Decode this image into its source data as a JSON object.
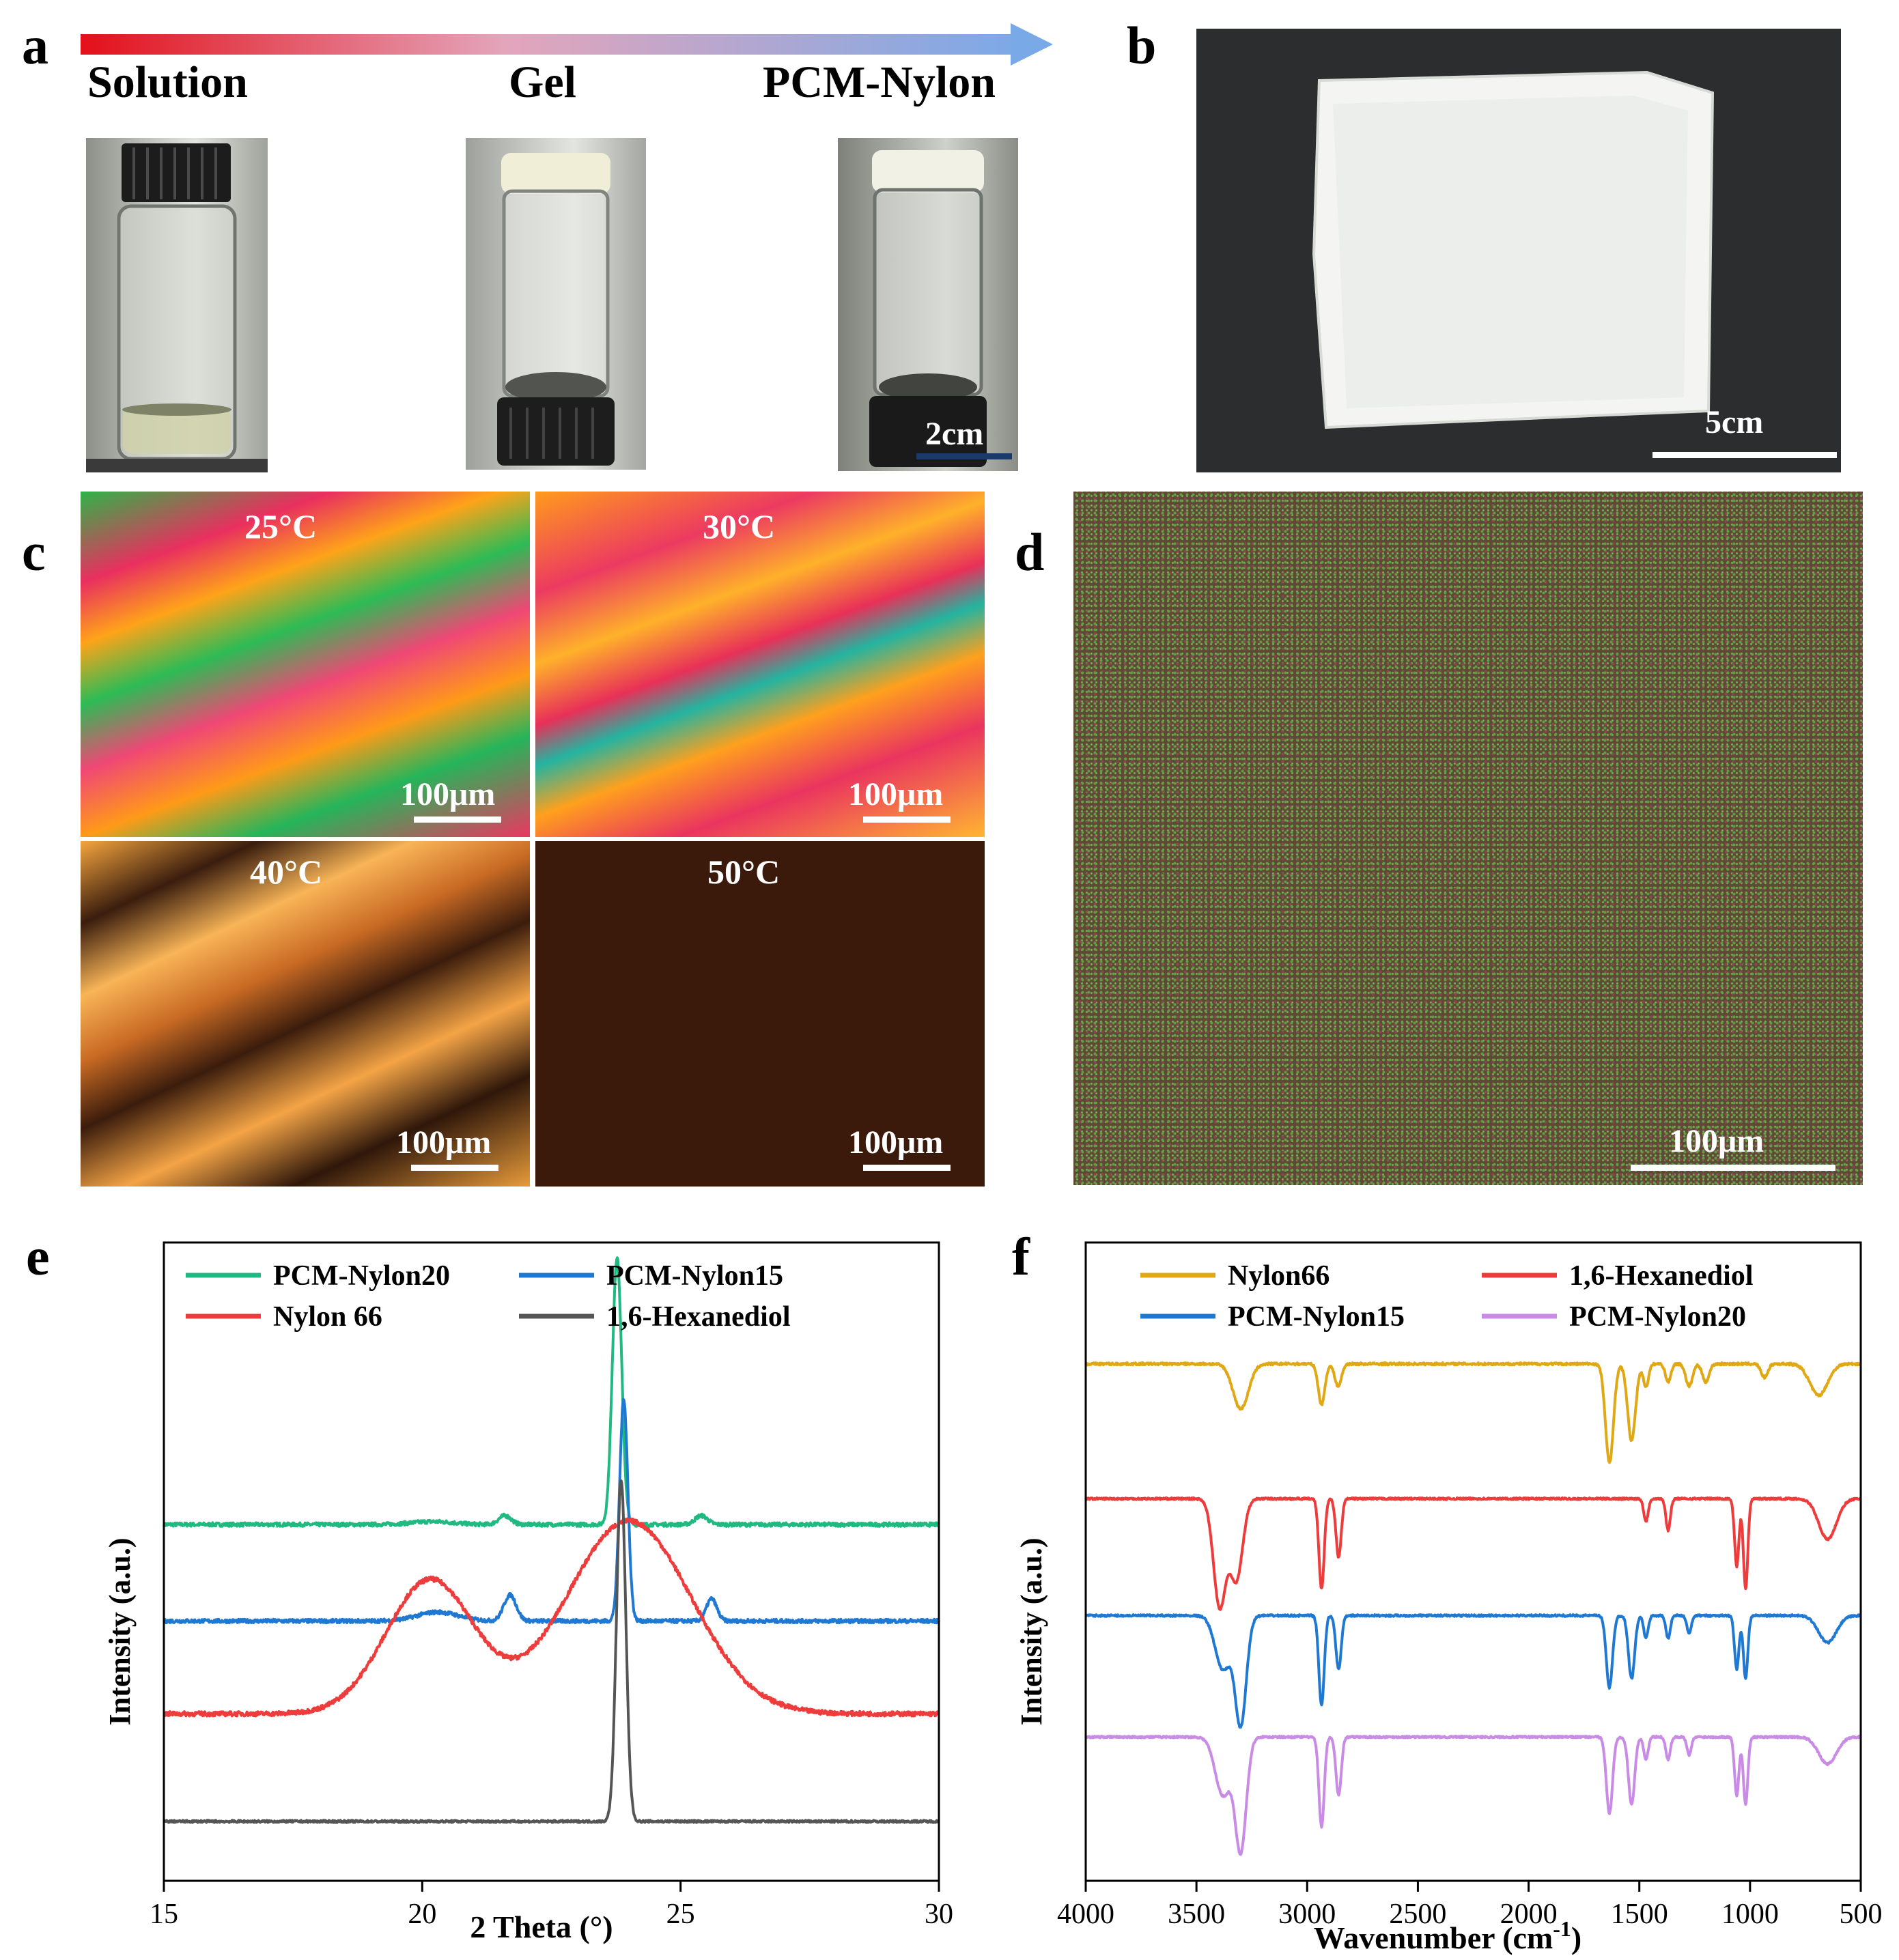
{
  "panels": {
    "a": {
      "label": "a",
      "steps": [
        "Solution",
        "Gel",
        "PCM-Nylon"
      ],
      "scale_bar": "2cm",
      "colors": {
        "arrow_start": "#e3101a",
        "arrow_end": "#7aa9e8"
      }
    },
    "b": {
      "label": "b",
      "scale_bar": "5cm"
    },
    "c": {
      "label": "c",
      "images": [
        {
          "temp": "25°C",
          "scale_bar": "100μm"
        },
        {
          "temp": "30°C",
          "scale_bar": "100μm"
        },
        {
          "temp": "40°C",
          "scale_bar": "100μm"
        },
        {
          "temp": "50°C",
          "scale_bar": "100μm"
        }
      ]
    },
    "d": {
      "label": "d",
      "scale_bar": "100μm"
    },
    "e": {
      "label": "e"
    },
    "f": {
      "label": "f"
    }
  },
  "chart_data": [
    {
      "type": "line",
      "panel": "e",
      "xlabel": "2 Theta (°)",
      "ylabel": "Intensity (a.u.)",
      "xlim": [
        15,
        30
      ],
      "xticks": [
        15,
        20,
        25,
        30
      ],
      "yticks_shown": false,
      "legend": {
        "placement": "top",
        "columns": 2
      },
      "series": [
        {
          "name": "PCM-Nylon20",
          "color": "#1fb981",
          "baseline": 4.0,
          "sigma": 0.05,
          "peaks": [
            [
              23.77,
              3.6,
              0.09
            ],
            [
              21.6,
              0.12,
              0.12
            ],
            [
              25.4,
              0.12,
              0.12
            ],
            [
              20.2,
              0.04,
              0.4
            ]
          ]
        },
        {
          "name": "PCM-Nylon15",
          "color": "#1f78d2",
          "baseline": 2.7,
          "sigma": 0.05,
          "peaks": [
            [
              23.9,
              3.0,
              0.08
            ],
            [
              21.7,
              0.35,
              0.12
            ],
            [
              25.6,
              0.3,
              0.1
            ],
            [
              20.3,
              0.12,
              0.4
            ]
          ]
        },
        {
          "name": "Nylon 66",
          "color": "#ee3b3b",
          "baseline": 1.45,
          "sigma": 0.06,
          "peaks": [
            [
              20.15,
              1.8,
              0.85
            ],
            [
              24.0,
              2.6,
              1.2
            ]
          ]
        },
        {
          "name": "1,6-Hexanediol",
          "color": "#555555",
          "baseline": 0.0,
          "sigma": 0.03,
          "peaks": [
            [
              23.85,
              4.6,
              0.09
            ]
          ]
        }
      ]
    },
    {
      "type": "line",
      "panel": "f",
      "xlabel": "Wavenumber (cm",
      "xlabel_sup": "-1",
      "xlabel_close": ")",
      "ylabel": "Intensity (a.u.)",
      "xlim": [
        4000,
        500
      ],
      "xticks": [
        4000,
        3500,
        3000,
        2500,
        2000,
        1500,
        1000,
        500
      ],
      "yticks_shown": false,
      "legend": {
        "placement": "top",
        "columns": 2
      },
      "series": [
        {
          "name": "Nylon66",
          "color": "#e0a814",
          "offset": 10.3,
          "sigma": 0.05,
          "bands": [
            [
              3300,
              1.0,
              35
            ],
            [
              2935,
              0.9,
              15
            ],
            [
              2860,
              0.5,
              15
            ],
            [
              1635,
              2.2,
              18
            ],
            [
              1535,
              1.7,
              18
            ],
            [
              1470,
              0.5,
              12
            ],
            [
              1370,
              0.4,
              12
            ],
            [
              1275,
              0.5,
              15
            ],
            [
              1200,
              0.4,
              15
            ],
            [
              935,
              0.3,
              15
            ],
            [
              690,
              0.7,
              40
            ]
          ]
        },
        {
          "name": "1,6-Hexanediol",
          "color": "#ee3b3b",
          "offset": 7.3,
          "sigma": 0.04,
          "bands": [
            [
              3395,
              2.4,
              28
            ],
            [
              3320,
              1.8,
              28
            ],
            [
              2935,
              2.0,
              12
            ],
            [
              2858,
              1.3,
              12
            ],
            [
              1470,
              0.5,
              10
            ],
            [
              1370,
              0.7,
              10
            ],
            [
              1060,
              1.5,
              10
            ],
            [
              1020,
              2.0,
              10
            ],
            [
              650,
              0.9,
              40
            ]
          ]
        },
        {
          "name": "PCM-Nylon15",
          "color": "#1f78d2",
          "offset": 4.7,
          "sigma": 0.04,
          "bands": [
            [
              3380,
              1.2,
              35
            ],
            [
              3300,
              2.4,
              25
            ],
            [
              2935,
              2.0,
              12
            ],
            [
              2858,
              1.2,
              12
            ],
            [
              1635,
              1.6,
              14
            ],
            [
              1535,
              1.4,
              14
            ],
            [
              1470,
              0.5,
              10
            ],
            [
              1370,
              0.5,
              10
            ],
            [
              1275,
              0.4,
              10
            ],
            [
              1060,
              1.2,
              10
            ],
            [
              1020,
              1.4,
              10
            ],
            [
              650,
              0.6,
              40
            ]
          ]
        },
        {
          "name": "PCM-Nylon20",
          "color": "#c98be6",
          "offset": 2.0,
          "sigma": 0.04,
          "bands": [
            [
              3380,
              1.3,
              35
            ],
            [
              3300,
              2.5,
              25
            ],
            [
              2935,
              2.0,
              12
            ],
            [
              2858,
              1.3,
              12
            ],
            [
              1635,
              1.7,
              14
            ],
            [
              1535,
              1.5,
              14
            ],
            [
              1470,
              0.5,
              10
            ],
            [
              1370,
              0.5,
              10
            ],
            [
              1275,
              0.4,
              10
            ],
            [
              1060,
              1.3,
              10
            ],
            [
              1020,
              1.5,
              10
            ],
            [
              650,
              0.6,
              40
            ]
          ]
        }
      ]
    }
  ]
}
